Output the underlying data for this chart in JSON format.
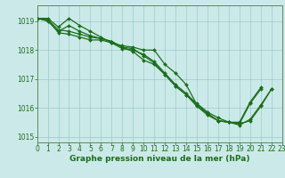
{
  "lines": [
    {
      "x": [
        0,
        1,
        2,
        3,
        4,
        5,
        6,
        7,
        8,
        9,
        10,
        11,
        12,
        13,
        14,
        15,
        16,
        17,
        18,
        19,
        20,
        21,
        22,
        23
      ],
      "y": [
        1019.1,
        1019.1,
        1018.8,
        1019.1,
        1018.85,
        1018.65,
        1018.45,
        1018.25,
        1018.15,
        1018.1,
        1018.0,
        1018.0,
        1017.5,
        1017.2,
        1016.8,
        1016.1,
        1015.8,
        1015.55,
        1015.5,
        1015.4,
        1015.6,
        1016.1,
        1016.65,
        null
      ]
    },
    {
      "x": [
        0,
        1,
        2,
        3,
        4,
        5,
        6,
        7,
        8,
        9,
        10,
        11,
        12,
        13,
        14,
        15,
        16,
        17,
        18,
        19,
        20,
        21,
        22,
        23
      ],
      "y": [
        1019.1,
        1019.05,
        1018.7,
        1018.65,
        1018.55,
        1018.45,
        1018.4,
        1018.3,
        1018.1,
        1018.05,
        1017.8,
        1017.55,
        1017.15,
        1016.75,
        1016.45,
        1016.05,
        1015.75,
        1015.55,
        1015.5,
        1015.45,
        1016.15,
        1016.65,
        null,
        null
      ]
    },
    {
      "x": [
        0,
        1,
        2,
        3,
        4,
        5,
        6,
        7,
        8,
        9,
        10,
        11,
        12,
        13,
        14,
        15,
        16,
        17,
        18,
        19,
        20,
        21,
        22,
        23
      ],
      "y": [
        1019.1,
        1019.0,
        1018.65,
        1018.85,
        1018.65,
        1018.5,
        1018.4,
        1018.3,
        1018.1,
        1017.95,
        1017.65,
        1017.5,
        1017.15,
        1016.75,
        1016.45,
        1016.15,
        1015.85,
        1015.65,
        1015.5,
        1015.45,
        1015.55,
        1016.05,
        1016.65,
        null
      ]
    },
    {
      "x": [
        0,
        1,
        2,
        3,
        4,
        5,
        6,
        7,
        8,
        9,
        10,
        11,
        12,
        13,
        14,
        15,
        16,
        17,
        18,
        19,
        20,
        21,
        22,
        23
      ],
      "y": [
        1019.1,
        1019.05,
        1018.6,
        1018.55,
        1018.45,
        1018.35,
        1018.35,
        1018.25,
        1018.05,
        1018.0,
        1017.85,
        1017.6,
        1017.2,
        1016.8,
        1016.5,
        1016.1,
        1015.8,
        1015.55,
        1015.5,
        1015.5,
        1016.2,
        1016.7,
        null,
        null
      ]
    }
  ],
  "xlim": [
    0,
    23
  ],
  "ylim": [
    1014.8,
    1019.55
  ],
  "yticks": [
    1015,
    1016,
    1017,
    1018,
    1019
  ],
  "xticks": [
    0,
    1,
    2,
    3,
    4,
    5,
    6,
    7,
    8,
    9,
    10,
    11,
    12,
    13,
    14,
    15,
    16,
    17,
    18,
    19,
    20,
    21,
    22,
    23
  ],
  "xlabel": "Graphe pression niveau de la mer (hPa)",
  "bg_color": "#cce9e9",
  "grid_color": "#99cccc",
  "line_color": "#1a6e1a",
  "tick_color": "#1a6e1a",
  "label_color": "#1a6e1a",
  "axis_color": "#5a8a5a",
  "tick_fontsize": 5.5,
  "label_fontsize": 6.5,
  "linewidth": 0.9,
  "markersize": 2.0
}
